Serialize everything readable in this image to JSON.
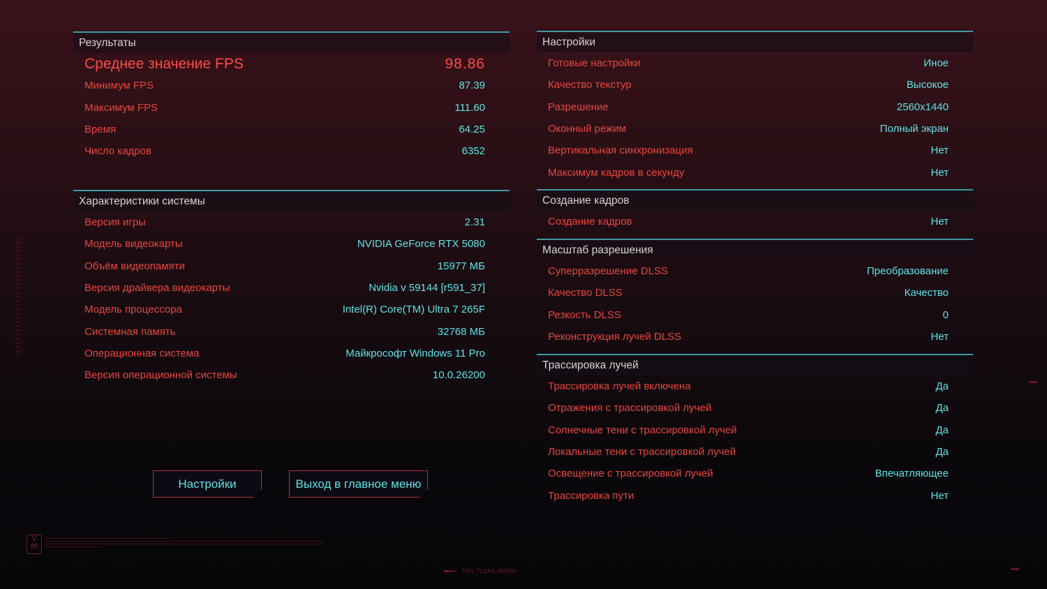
{
  "results": {
    "title": "Результаты",
    "rows": [
      {
        "label": "Среднее значение FPS",
        "value": "98.86"
      },
      {
        "label": "Минимум FPS",
        "value": "87.39"
      },
      {
        "label": "Максимум FPS",
        "value": "111.60"
      },
      {
        "label": "Время",
        "value": "64.25"
      },
      {
        "label": "Число кадров",
        "value": "6352"
      }
    ]
  },
  "system": {
    "title": "Характеристики системы",
    "rows": [
      {
        "label": "Версия игры",
        "value": "2.31"
      },
      {
        "label": "Модель видеокарты",
        "value": "NVIDIA GeForce RTX 5080"
      },
      {
        "label": "Объём видеопамяти",
        "value": "15977 МБ"
      },
      {
        "label": "Версия драйвера видеокарты",
        "value": "Nvidia v 59144 [r591_37]"
      },
      {
        "label": "Модель процессора",
        "value": "Intel(R) Core(TM) Ultra 7 265F"
      },
      {
        "label": "Системная память",
        "value": "32768 МБ"
      },
      {
        "label": "Операционная система",
        "value": "Майкрософт Windows 11 Pro"
      },
      {
        "label": "Версия операционной системы",
        "value": "10.0.26200"
      }
    ]
  },
  "settings": {
    "title": "Настройки",
    "rows": [
      {
        "label": "Готовые настройки",
        "value": "Иное"
      },
      {
        "label": "Качество текстур",
        "value": "Высокое"
      },
      {
        "label": "Разрешение",
        "value": "2560x1440"
      },
      {
        "label": "Оконный режим",
        "value": "Полный экран"
      },
      {
        "label": "Вертикальная синхронизация",
        "value": "Нет"
      },
      {
        "label": "Максимум кадров в секунду",
        "value": "Нет"
      }
    ]
  },
  "framegen": {
    "title": "Создание кадров",
    "rows": [
      {
        "label": "Создание кадров",
        "value": "Нет"
      }
    ]
  },
  "scaling": {
    "title": "Масштаб разрешения",
    "rows": [
      {
        "label": "Суперразрешение DLSS",
        "value": "Преобразование"
      },
      {
        "label": "Качество DLSS",
        "value": "Качество"
      },
      {
        "label": "Резкость DLSS",
        "value": "0"
      },
      {
        "label": "Реконструкция лучей DLSS",
        "value": "Нет"
      }
    ]
  },
  "raytracing": {
    "title": "Трассировка лучей",
    "rows": [
      {
        "label": "Трассировка лучей включена",
        "value": "Да"
      },
      {
        "label": "Отражения с трассировкой лучей",
        "value": "Да"
      },
      {
        "label": "Солнечные тени с трассировкой лучей",
        "value": "Да"
      },
      {
        "label": "Локальные тени с трассировкой лучей",
        "value": "Да"
      },
      {
        "label": "Освещение с трассировкой лучей",
        "value": "Впечатляющее"
      },
      {
        "label": "Трассировка пути",
        "value": "Нет"
      }
    ]
  },
  "buttons": {
    "settings": "Настройки",
    "main_menu": "Выход в главное меню"
  },
  "footer": {
    "logo": "V 85",
    "code": "TRN_TLCAS_800095"
  },
  "colors": {
    "label": "#e6463e",
    "value": "#5fe3e6",
    "accent_line": "#3c9aa3",
    "button_border": "#b3323a"
  }
}
